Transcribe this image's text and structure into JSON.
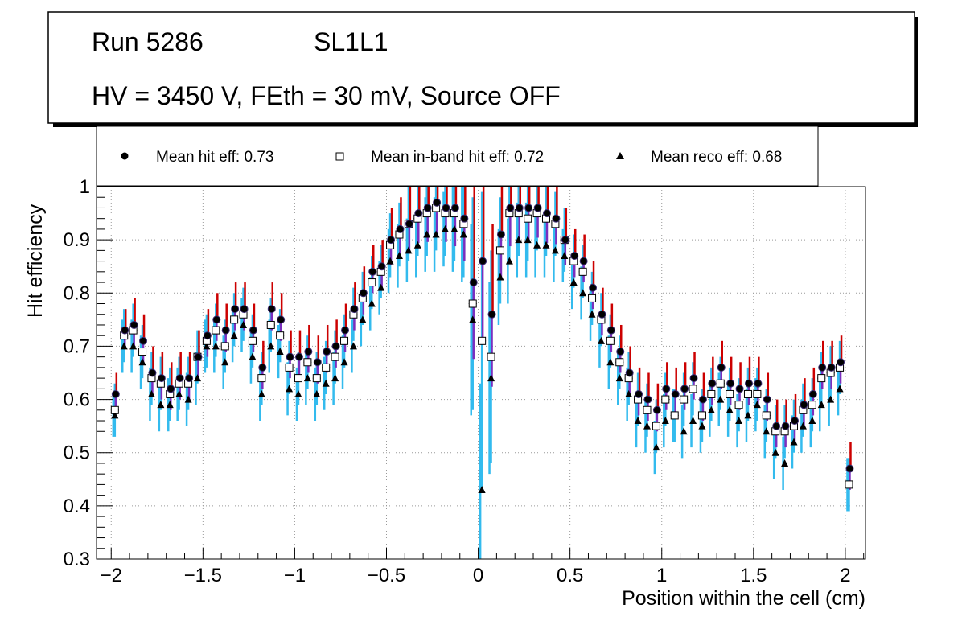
{
  "header": {
    "run": "Run 5286",
    "layer": "SL1L1",
    "conditions": "HV = 3450 V, FEth = 30 mV, Source OFF"
  },
  "colors": {
    "hit_marker": "#000000",
    "hit_error_up": "#cc0000",
    "hit_error": "#7b2fbe",
    "inband_error": "#33bbee",
    "reco_marker": "#000000",
    "grid": "#999999"
  },
  "chart_data": {
    "type": "scatter",
    "title": "",
    "xlabel": "Position within the cell (cm)",
    "ylabel": "Hit efficiency",
    "xlim": [
      -2.08,
      2.11
    ],
    "ylim": [
      0.3,
      1.0
    ],
    "xticks": [
      -2,
      -1.5,
      -1,
      -0.5,
      0,
      0.5,
      1,
      1.5,
      2
    ],
    "xtick_labels": [
      "−2",
      "−1.5",
      "−1",
      "−0.5",
      "0",
      "0.5",
      "1",
      "1.5",
      "2"
    ],
    "yticks": [
      0.3,
      0.4,
      0.5,
      0.6,
      0.7,
      0.8,
      0.9,
      1.0
    ],
    "ytick_labels": [
      "0.3",
      "0.4",
      "0.5",
      "0.6",
      "0.7",
      "0.8",
      "0.9",
      "1"
    ],
    "grid": true,
    "legend_position": "top",
    "x": [
      -1.98,
      -1.93,
      -1.88,
      -1.83,
      -1.78,
      -1.73,
      -1.68,
      -1.63,
      -1.58,
      -1.53,
      -1.48,
      -1.43,
      -1.38,
      -1.33,
      -1.28,
      -1.23,
      -1.18,
      -1.13,
      -1.08,
      -1.03,
      -0.98,
      -0.93,
      -0.88,
      -0.83,
      -0.78,
      -0.73,
      -0.68,
      -0.63,
      -0.58,
      -0.53,
      -0.48,
      -0.43,
      -0.38,
      -0.33,
      -0.28,
      -0.23,
      -0.18,
      -0.13,
      -0.08,
      -0.03,
      0.02,
      0.07,
      0.12,
      0.17,
      0.22,
      0.27,
      0.32,
      0.37,
      0.42,
      0.47,
      0.52,
      0.57,
      0.62,
      0.67,
      0.72,
      0.77,
      0.82,
      0.87,
      0.92,
      0.97,
      1.02,
      1.07,
      1.12,
      1.17,
      1.22,
      1.27,
      1.32,
      1.37,
      1.42,
      1.47,
      1.52,
      1.57,
      1.62,
      1.67,
      1.72,
      1.77,
      1.82,
      1.87,
      1.92,
      1.97,
      2.02
    ],
    "series": [
      {
        "name": "Mean hit  eff: 0.73",
        "marker": "circle",
        "values": [
          0.61,
          0.73,
          0.74,
          0.71,
          0.65,
          0.64,
          0.62,
          0.64,
          0.64,
          0.68,
          0.72,
          0.75,
          0.73,
          0.77,
          0.77,
          0.73,
          0.66,
          0.77,
          0.75,
          0.68,
          0.68,
          0.69,
          0.67,
          0.69,
          0.7,
          0.73,
          0.77,
          0.8,
          0.84,
          0.85,
          0.9,
          0.92,
          0.93,
          0.95,
          0.96,
          0.97,
          0.96,
          0.96,
          0.94,
          0.82,
          0.86,
          0.76,
          0.91,
          0.96,
          0.96,
          0.96,
          0.96,
          0.95,
          0.94,
          0.9,
          0.87,
          0.86,
          0.81,
          0.76,
          0.73,
          0.69,
          0.65,
          0.61,
          0.6,
          0.58,
          0.62,
          0.61,
          0.62,
          0.64,
          0.6,
          0.63,
          0.66,
          0.63,
          0.62,
          0.63,
          0.63,
          0.6,
          0.55,
          0.55,
          0.56,
          0.59,
          0.61,
          0.66,
          0.66,
          0.67,
          0.47
        ],
        "err": [
          0.04,
          0.04,
          0.05,
          0.05,
          0.05,
          0.05,
          0.05,
          0.05,
          0.05,
          0.05,
          0.05,
          0.05,
          0.05,
          0.05,
          0.05,
          0.05,
          0.05,
          0.05,
          0.05,
          0.05,
          0.05,
          0.05,
          0.05,
          0.05,
          0.05,
          0.05,
          0.05,
          0.05,
          0.05,
          0.05,
          0.06,
          0.06,
          0.07,
          0.07,
          0.08,
          0.08,
          0.08,
          0.09,
          0.1,
          0.18,
          0.18,
          0.17,
          0.1,
          0.09,
          0.08,
          0.08,
          0.07,
          0.07,
          0.06,
          0.06,
          0.05,
          0.05,
          0.05,
          0.05,
          0.05,
          0.05,
          0.05,
          0.05,
          0.05,
          0.05,
          0.05,
          0.05,
          0.05,
          0.05,
          0.05,
          0.05,
          0.05,
          0.05,
          0.05,
          0.05,
          0.05,
          0.05,
          0.05,
          0.05,
          0.05,
          0.05,
          0.05,
          0.05,
          0.05,
          0.05,
          0.05
        ]
      },
      {
        "name": "Mean in-band hit eff: 0.72",
        "marker": "open-square",
        "values": [
          0.58,
          0.72,
          0.73,
          0.69,
          0.64,
          0.63,
          0.61,
          0.63,
          0.63,
          0.68,
          0.71,
          0.73,
          0.7,
          0.75,
          0.76,
          0.71,
          0.64,
          0.74,
          0.72,
          0.66,
          0.64,
          0.67,
          0.64,
          0.66,
          0.68,
          0.71,
          0.76,
          0.79,
          0.82,
          0.84,
          0.89,
          0.91,
          0.93,
          0.94,
          0.95,
          0.96,
          0.95,
          0.95,
          0.93,
          0.78,
          0.71,
          0.68,
          0.88,
          0.95,
          0.95,
          0.94,
          0.95,
          0.94,
          0.93,
          0.9,
          0.86,
          0.84,
          0.79,
          0.75,
          0.71,
          0.67,
          0.64,
          0.6,
          0.58,
          0.55,
          0.6,
          0.57,
          0.6,
          0.62,
          0.57,
          0.61,
          0.63,
          0.61,
          0.59,
          0.61,
          0.61,
          0.57,
          0.54,
          0.54,
          0.55,
          0.58,
          0.59,
          0.64,
          0.65,
          0.66,
          0.44
        ],
        "err": [
          0.05,
          0.05,
          0.05,
          0.05,
          0.05,
          0.05,
          0.05,
          0.05,
          0.05,
          0.05,
          0.05,
          0.05,
          0.05,
          0.05,
          0.05,
          0.05,
          0.05,
          0.05,
          0.05,
          0.05,
          0.05,
          0.05,
          0.05,
          0.05,
          0.05,
          0.05,
          0.05,
          0.05,
          0.05,
          0.05,
          0.06,
          0.06,
          0.07,
          0.07,
          0.08,
          0.08,
          0.08,
          0.09,
          0.1,
          0.2,
          0.28,
          0.2,
          0.1,
          0.09,
          0.08,
          0.08,
          0.07,
          0.07,
          0.06,
          0.06,
          0.05,
          0.05,
          0.05,
          0.05,
          0.05,
          0.05,
          0.05,
          0.05,
          0.05,
          0.05,
          0.05,
          0.05,
          0.05,
          0.05,
          0.05,
          0.05,
          0.05,
          0.05,
          0.05,
          0.05,
          0.05,
          0.05,
          0.05,
          0.05,
          0.05,
          0.05,
          0.05,
          0.05,
          0.05,
          0.05,
          0.05
        ]
      },
      {
        "name": "Mean reco eff: 0.68",
        "marker": "triangle",
        "values": [
          0.57,
          0.7,
          0.7,
          0.67,
          0.61,
          0.59,
          0.59,
          0.61,
          0.6,
          0.64,
          0.7,
          0.7,
          0.67,
          0.72,
          0.74,
          0.68,
          0.61,
          0.7,
          0.69,
          0.62,
          0.61,
          0.64,
          0.61,
          0.63,
          0.64,
          0.67,
          0.7,
          0.75,
          0.78,
          0.81,
          0.86,
          0.87,
          0.88,
          0.89,
          0.91,
          0.91,
          0.92,
          0.92,
          0.91,
          0.75,
          0.43,
          0.64,
          0.83,
          0.86,
          0.9,
          0.9,
          0.89,
          0.89,
          0.88,
          0.87,
          0.82,
          0.8,
          0.76,
          0.71,
          0.67,
          0.64,
          0.61,
          0.56,
          0.55,
          0.51,
          0.56,
          0.57,
          0.54,
          0.56,
          0.55,
          0.58,
          0.6,
          0.58,
          0.56,
          0.57,
          0.59,
          0.54,
          0.5,
          0.48,
          0.52,
          0.55,
          0.56,
          0.59,
          0.6,
          0.62,
          0.44
        ],
        "err": [
          0.04,
          0.05,
          0.05,
          0.05,
          0.05,
          0.05,
          0.05,
          0.05,
          0.05,
          0.05,
          0.05,
          0.05,
          0.05,
          0.05,
          0.05,
          0.05,
          0.05,
          0.05,
          0.05,
          0.05,
          0.05,
          0.05,
          0.05,
          0.05,
          0.05,
          0.05,
          0.05,
          0.05,
          0.05,
          0.05,
          0.06,
          0.06,
          0.06,
          0.06,
          0.07,
          0.07,
          0.07,
          0.08,
          0.09,
          0.18,
          0.2,
          0.18,
          0.09,
          0.08,
          0.07,
          0.07,
          0.06,
          0.06,
          0.06,
          0.05,
          0.05,
          0.05,
          0.05,
          0.05,
          0.05,
          0.05,
          0.05,
          0.05,
          0.05,
          0.05,
          0.05,
          0.05,
          0.05,
          0.05,
          0.05,
          0.05,
          0.05,
          0.05,
          0.05,
          0.05,
          0.05,
          0.05,
          0.05,
          0.05,
          0.05,
          0.05,
          0.05,
          0.05,
          0.05,
          0.05,
          0.05
        ]
      }
    ]
  }
}
